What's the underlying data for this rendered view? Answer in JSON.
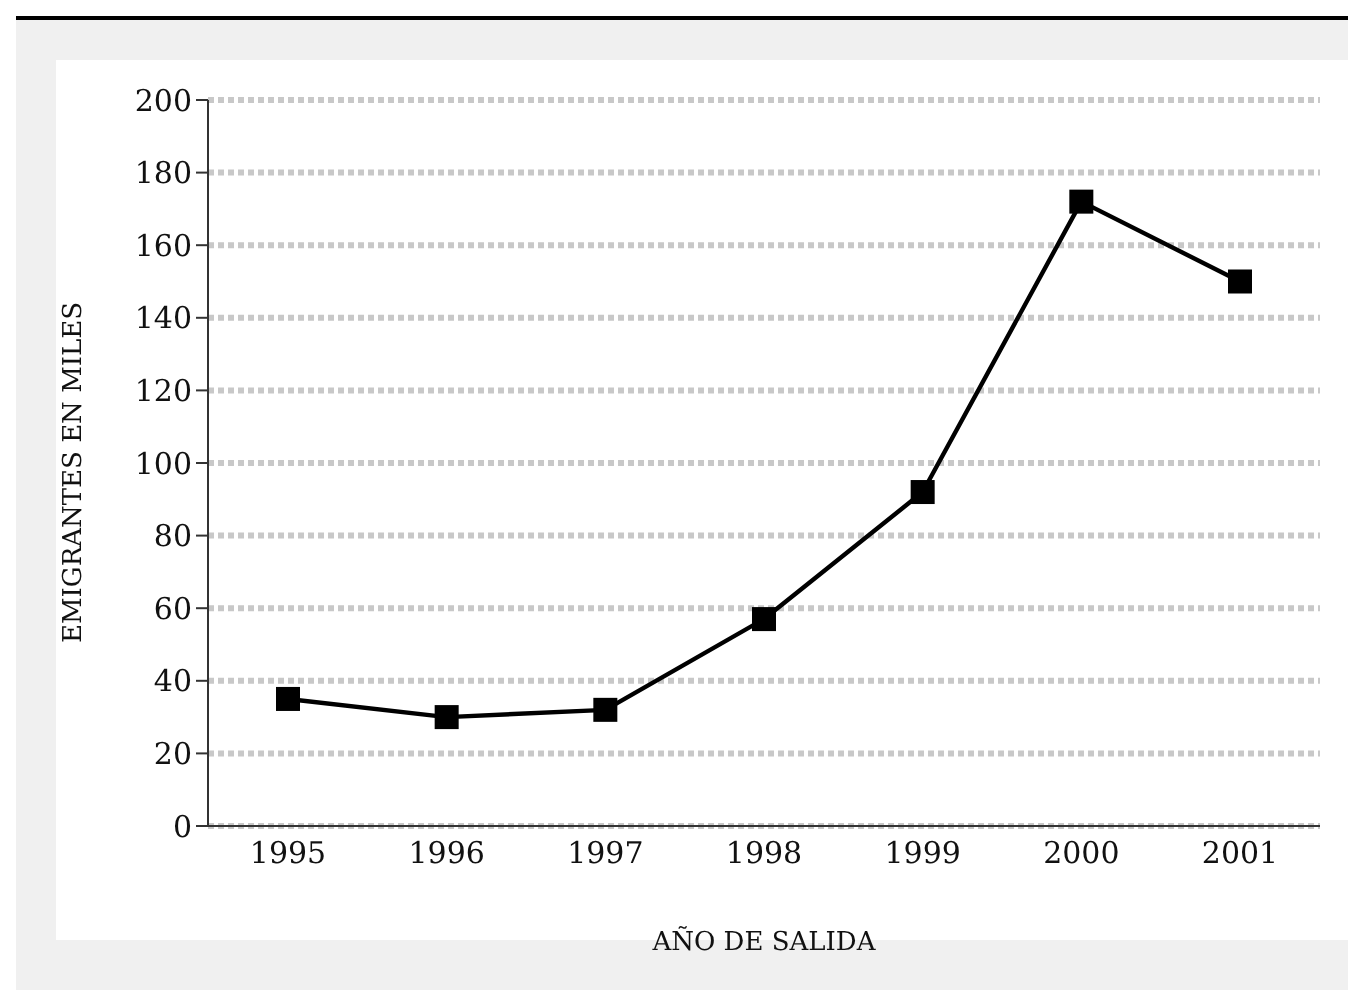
{
  "chart_data": {
    "type": "line",
    "xlabel": "AÑO DE SALIDA",
    "ylabel": "EMIGRANTES EN MILES",
    "categories": [
      "1995",
      "1996",
      "1997",
      "1998",
      "1999",
      "2000",
      "2001"
    ],
    "series": [
      {
        "color": "#000000",
        "values": [
          35,
          30,
          32,
          57,
          92,
          172,
          150
        ]
      }
    ],
    "ylim": [
      0,
      200
    ],
    "yticks": [
      0,
      20,
      40,
      60,
      80,
      100,
      120,
      140,
      160,
      180,
      200
    ],
    "grid": "y",
    "marker": "square",
    "line_style": "solid",
    "legend": false
  }
}
